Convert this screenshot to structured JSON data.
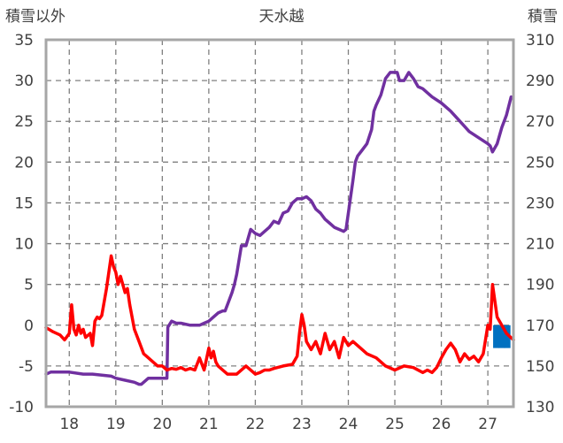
{
  "chart_data": {
    "type": "line",
    "title": "天水越",
    "left_axis_label": "積雪以外",
    "right_axis_label": "積雪",
    "x_ticks": [
      "18",
      "19",
      "20",
      "21",
      "22",
      "23",
      "24",
      "25",
      "26",
      "27"
    ],
    "y_left": {
      "min": -10,
      "max": 35,
      "ticks": [
        35,
        30,
        25,
        20,
        15,
        10,
        5,
        0,
        -5,
        -10
      ]
    },
    "y_right": {
      "min": 130,
      "max": 310,
      "ticks": [
        310,
        290,
        270,
        250,
        230,
        210,
        190,
        170,
        150,
        130
      ]
    },
    "x_range": [
      17.5,
      27.55
    ],
    "grid": true,
    "colors": {
      "snow_depth": "#7030a0",
      "other": "#ff0000",
      "bars": "#0070c0",
      "axis": "#a6a6a6",
      "grid": "#808080"
    },
    "series": [
      {
        "axis": "right",
        "x": [
          17.5,
          17.6,
          17.9,
          18.0,
          18.3,
          18.5,
          18.9,
          19.0,
          19.2,
          19.4,
          19.5,
          19.55,
          19.6,
          19.7,
          20.0,
          20.1,
          20.12,
          20.2,
          20.3,
          20.4,
          20.6,
          20.8,
          20.9,
          21.0,
          21.1,
          21.2,
          21.3,
          21.35,
          21.4,
          21.5,
          21.55,
          21.6,
          21.7,
          21.8,
          21.9,
          22.0,
          22.1,
          22.2,
          22.3,
          22.4,
          22.5,
          22.6,
          22.7,
          22.8,
          22.9,
          23.0,
          23.1,
          23.2,
          23.3,
          23.4,
          23.5,
          23.6,
          23.7,
          23.8,
          23.9,
          23.95,
          24.0,
          24.1,
          24.15,
          24.2,
          24.3,
          24.4,
          24.5,
          24.55,
          24.6,
          24.7,
          24.8,
          24.9,
          25.0,
          25.05,
          25.1,
          25.2,
          25.3,
          25.4,
          25.5,
          25.6,
          25.7,
          25.8,
          26.0,
          26.2,
          26.4,
          26.6,
          26.8,
          27.0,
          27.05,
          27.1,
          27.2,
          27.3,
          27.4,
          27.5
        ],
        "values": [
          146,
          147,
          147,
          147,
          146,
          146,
          145,
          144,
          143,
          142,
          141,
          141,
          142,
          144,
          144,
          144,
          169,
          172,
          171,
          171,
          170,
          170,
          171,
          172,
          174,
          176,
          177,
          177,
          180,
          186,
          190,
          195,
          209,
          209,
          217,
          215,
          214,
          216,
          218,
          221,
          220,
          225,
          226,
          230,
          232,
          232,
          233,
          231,
          227,
          225,
          222,
          220,
          218,
          217,
          216,
          217,
          225,
          241,
          250,
          253,
          256,
          259,
          266,
          275,
          278,
          283,
          291,
          294,
          294,
          294,
          290,
          290,
          294,
          291,
          287,
          286,
          284,
          282,
          279,
          275,
          270,
          265,
          262,
          259,
          258,
          255,
          259,
          267,
          273,
          282
        ]
      },
      {
        "axis": "left",
        "x": [
          17.5,
          17.65,
          17.8,
          17.9,
          18.0,
          18.05,
          18.1,
          18.15,
          18.2,
          18.25,
          18.3,
          18.35,
          18.45,
          18.5,
          18.55,
          18.6,
          18.65,
          18.7,
          18.8,
          18.9,
          18.95,
          19.0,
          19.05,
          19.1,
          19.2,
          19.25,
          19.3,
          19.35,
          19.4,
          19.5,
          19.6,
          19.7,
          19.8,
          19.9,
          20.0,
          20.1,
          20.2,
          20.3,
          20.4,
          20.5,
          20.6,
          20.7,
          20.8,
          20.9,
          21.0,
          21.05,
          21.1,
          21.15,
          21.2,
          21.3,
          21.4,
          21.6,
          21.8,
          22.0,
          22.1,
          22.2,
          22.3,
          22.4,
          22.6,
          22.8,
          22.9,
          22.95,
          23.0,
          23.05,
          23.1,
          23.2,
          23.3,
          23.4,
          23.5,
          23.6,
          23.7,
          23.8,
          23.9,
          24.0,
          24.1,
          24.2,
          24.4,
          24.6,
          24.8,
          25.0,
          25.2,
          25.4,
          25.6,
          25.7,
          25.8,
          25.9,
          26.0,
          26.1,
          26.2,
          26.3,
          26.4,
          26.5,
          26.6,
          26.7,
          26.8,
          26.9,
          27.0,
          27.05,
          27.1,
          27.2,
          27.4,
          27.55
        ],
        "values": [
          -0.3,
          -0.8,
          -1.2,
          -1.8,
          -1.0,
          2.5,
          -0.5,
          -1.2,
          0.0,
          -1.0,
          -0.5,
          -1.5,
          -1.0,
          -2.5,
          0.5,
          1.0,
          0.8,
          1.2,
          4.5,
          8.5,
          7.2,
          6.5,
          5.0,
          6.0,
          4.0,
          4.5,
          2.5,
          1.0,
          -0.5,
          -2.0,
          -3.5,
          -4.0,
          -4.5,
          -5.0,
          -5.0,
          -5.5,
          -5.3,
          -5.4,
          -5.2,
          -5.5,
          -5.3,
          -5.5,
          -4.0,
          -5.5,
          -2.8,
          -4.0,
          -3.2,
          -4.5,
          -5.0,
          -5.5,
          -6.0,
          -6.0,
          -5.0,
          -6.0,
          -5.8,
          -5.5,
          -5.5,
          -5.3,
          -5.0,
          -4.8,
          -3.8,
          -1.0,
          1.3,
          0.0,
          -2.0,
          -3.0,
          -2.0,
          -3.5,
          -1.0,
          -3.0,
          -2.0,
          -4.0,
          -1.5,
          -2.5,
          -2.0,
          -2.5,
          -3.5,
          -4.0,
          -5.0,
          -5.5,
          -5.0,
          -5.2,
          -5.8,
          -5.5,
          -5.8,
          -5.2,
          -4.0,
          -3.0,
          -2.2,
          -3.0,
          -4.5,
          -3.5,
          -4.2,
          -3.8,
          -4.5,
          -3.5,
          0.0,
          -0.5,
          5.0,
          1.0,
          -1.0,
          -1.8
        ]
      },
      {
        "axis": "left",
        "type": "bar",
        "x": [
          27.18,
          27.3,
          27.42
        ],
        "values": [
          -2.8,
          -2.8,
          -2.8
        ]
      }
    ]
  }
}
